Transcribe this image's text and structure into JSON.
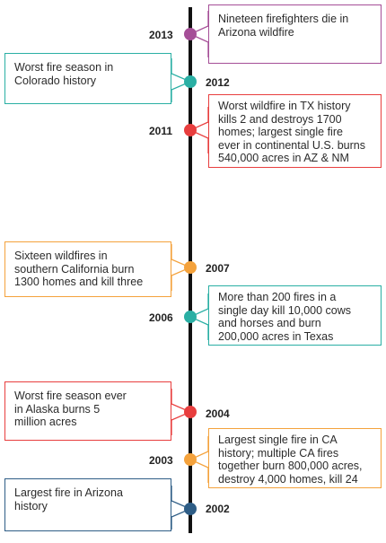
{
  "events": [
    {
      "year": "2013",
      "color": "#a54e97",
      "text": "Nineteen firefighters die in\nArizona wildfire"
    },
    {
      "year": "2012",
      "color": "#2aafa4",
      "text": "Worst fire season in\nColorado history"
    },
    {
      "year": "2011",
      "color": "#e83e3e",
      "text": "Worst wildfire in TX history\nkills 2 and destroys 1700\nhomes; largest single fire\never in continental U.S. burns\n540,000 acres in AZ & NM"
    },
    {
      "year": "2007",
      "color": "#f4a23c",
      "text": "Sixteen wildfires in\nsouthern California burn\n1300 homes and kill three"
    },
    {
      "year": "2006",
      "color": "#2aafa4",
      "text": "More than 200 fires in a\nsingle day kill 10,000 cows\nand horses and burn\n200,000 acres in Texas"
    },
    {
      "year": "2004",
      "color": "#e83e3e",
      "text": "Worst fire season ever\nin Alaska burns 5\nmillion acres"
    },
    {
      "year": "2003",
      "color": "#f4a23c",
      "text": "Largest single fire in CA\nhistory; multiple CA fires\ntogether burn 800,000 acres,\ndestroy 4,000 homes, kill 24"
    },
    {
      "year": "2002",
      "color": "#2e5d86",
      "text": "Largest fire in Arizona\nhistory"
    }
  ]
}
